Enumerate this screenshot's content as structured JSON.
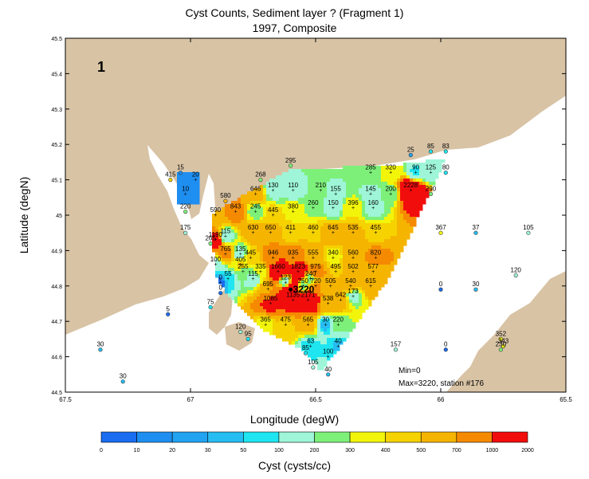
{
  "title": "Cyst Counts, Sediment layer ?  (Fragment 1)",
  "subtitle": "1997, Composite",
  "panel_label": "1",
  "stats": {
    "min": "Min=0",
    "max": "Max=3220, station #176"
  },
  "peak_label": "3220",
  "chart_data": {
    "type": "heatmap",
    "xlabel": "Longitude (degW)",
    "ylabel": "Latitude (degN)",
    "xlim": [
      67.5,
      65.5
    ],
    "ylim": [
      44.5,
      45.5
    ],
    "x_ticks": [
      "67.5",
      "67",
      "66.5",
      "66",
      "65.5"
    ],
    "y_ticks": [
      "44.5",
      "44.6",
      "44.7",
      "44.8",
      "44.9",
      "45",
      "45.1",
      "45.2",
      "45.3",
      "45.4",
      "45.5"
    ],
    "colorbar": {
      "label": "Cyst (cysts/cc)",
      "ticks": [
        "0",
        "10",
        "20",
        "30",
        "50",
        "100",
        "200",
        "300",
        "400",
        "500",
        "700",
        "1000",
        "2000"
      ],
      "colors": [
        "#1a6cf0",
        "#1e8ef0",
        "#21a3f2",
        "#26bdf2",
        "#1ee5f0",
        "#9ef5d8",
        "#7df07a",
        "#f2f50a",
        "#f5d200",
        "#f5b400",
        "#f58a00",
        "#f20d0d"
      ]
    },
    "stations": [
      {
        "lon": 67.04,
        "lat": 45.12,
        "value": "15"
      },
      {
        "lon": 66.98,
        "lat": 45.1,
        "value": "20"
      },
      {
        "lon": 67.08,
        "lat": 45.1,
        "value": "415"
      },
      {
        "lon": 67.02,
        "lat": 45.06,
        "value": "10"
      },
      {
        "lon": 67.02,
        "lat": 45.01,
        "value": "220"
      },
      {
        "lon": 67.02,
        "lat": 44.95,
        "value": "175"
      },
      {
        "lon": 66.86,
        "lat": 45.04,
        "value": "580"
      },
      {
        "lon": 66.9,
        "lat": 45.0,
        "value": "590"
      },
      {
        "lon": 66.9,
        "lat": 44.93,
        "value": "1190"
      },
      {
        "lon": 66.82,
        "lat": 45.01,
        "value": "843"
      },
      {
        "lon": 66.74,
        "lat": 45.06,
        "value": "646"
      },
      {
        "lon": 66.72,
        "lat": 45.1,
        "value": "268"
      },
      {
        "lon": 66.6,
        "lat": 45.14,
        "value": "295"
      },
      {
        "lon": 66.67,
        "lat": 45.07,
        "value": "130"
      },
      {
        "lon": 66.59,
        "lat": 45.07,
        "value": "110"
      },
      {
        "lon": 66.48,
        "lat": 45.07,
        "value": "210"
      },
      {
        "lon": 66.42,
        "lat": 45.06,
        "value": "155"
      },
      {
        "lon": 66.28,
        "lat": 45.12,
        "value": "285"
      },
      {
        "lon": 66.2,
        "lat": 45.12,
        "value": "320"
      },
      {
        "lon": 66.12,
        "lat": 45.17,
        "value": "25"
      },
      {
        "lon": 66.04,
        "lat": 45.18,
        "value": "85"
      },
      {
        "lon": 65.98,
        "lat": 45.18,
        "value": "83"
      },
      {
        "lon": 66.1,
        "lat": 45.12,
        "value": "90"
      },
      {
        "lon": 66.04,
        "lat": 45.12,
        "value": "125"
      },
      {
        "lon": 65.98,
        "lat": 45.12,
        "value": "80"
      },
      {
        "lon": 66.28,
        "lat": 45.06,
        "value": "145"
      },
      {
        "lon": 66.2,
        "lat": 45.06,
        "value": "200"
      },
      {
        "lon": 66.12,
        "lat": 45.07,
        "value": "2228"
      },
      {
        "lon": 66.04,
        "lat": 45.06,
        "value": "290"
      },
      {
        "lon": 66.74,
        "lat": 45.01,
        "value": "245"
      },
      {
        "lon": 66.67,
        "lat": 45.0,
        "value": "445"
      },
      {
        "lon": 66.59,
        "lat": 45.01,
        "value": "380"
      },
      {
        "lon": 66.51,
        "lat": 45.02,
        "value": "260"
      },
      {
        "lon": 66.43,
        "lat": 45.02,
        "value": "150"
      },
      {
        "lon": 66.35,
        "lat": 45.02,
        "value": "396"
      },
      {
        "lon": 66.27,
        "lat": 45.02,
        "value": "160"
      },
      {
        "lon": 66.75,
        "lat": 44.95,
        "value": "630"
      },
      {
        "lon": 66.68,
        "lat": 44.95,
        "value": "650"
      },
      {
        "lon": 66.6,
        "lat": 44.95,
        "value": "411"
      },
      {
        "lon": 66.51,
        "lat": 44.95,
        "value": "460"
      },
      {
        "lon": 66.43,
        "lat": 44.95,
        "value": "645"
      },
      {
        "lon": 66.35,
        "lat": 44.95,
        "value": "535"
      },
      {
        "lon": 66.26,
        "lat": 44.95,
        "value": "455"
      },
      {
        "lon": 66.86,
        "lat": 44.94,
        "value": "115"
      },
      {
        "lon": 66.92,
        "lat": 44.92,
        "value": "265"
      },
      {
        "lon": 66.86,
        "lat": 44.89,
        "value": "765"
      },
      {
        "lon": 66.8,
        "lat": 44.89,
        "value": "135"
      },
      {
        "lon": 66.76,
        "lat": 44.88,
        "value": "445"
      },
      {
        "lon": 66.67,
        "lat": 44.88,
        "value": "946"
      },
      {
        "lon": 66.59,
        "lat": 44.88,
        "value": "935"
      },
      {
        "lon": 66.51,
        "lat": 44.88,
        "value": "555"
      },
      {
        "lon": 66.43,
        "lat": 44.88,
        "value": "340"
      },
      {
        "lon": 66.35,
        "lat": 44.88,
        "value": "560"
      },
      {
        "lon": 66.26,
        "lat": 44.88,
        "value": "820"
      },
      {
        "lon": 66.8,
        "lat": 44.86,
        "value": "405"
      },
      {
        "lon": 66.9,
        "lat": 44.86,
        "value": "100"
      },
      {
        "lon": 66.79,
        "lat": 44.84,
        "value": "255"
      },
      {
        "lon": 66.72,
        "lat": 44.84,
        "value": "335"
      },
      {
        "lon": 66.65,
        "lat": 44.84,
        "value": "1660"
      },
      {
        "lon": 66.57,
        "lat": 44.84,
        "value": "1823"
      },
      {
        "lon": 66.5,
        "lat": 44.84,
        "value": "975"
      },
      {
        "lon": 66.42,
        "lat": 44.84,
        "value": "495"
      },
      {
        "lon": 66.35,
        "lat": 44.84,
        "value": "502"
      },
      {
        "lon": 66.27,
        "lat": 44.84,
        "value": "577"
      },
      {
        "lon": 66.85,
        "lat": 44.82,
        "value": "55"
      },
      {
        "lon": 66.75,
        "lat": 44.82,
        "value": "115"
      },
      {
        "lon": 66.62,
        "lat": 44.81,
        "value": "123"
      },
      {
        "lon": 66.52,
        "lat": 44.82,
        "value": "240"
      },
      {
        "lon": 66.55,
        "lat": 44.8,
        "value": "250"
      },
      {
        "lon": 66.5,
        "lat": 44.8,
        "value": "720"
      },
      {
        "lon": 66.44,
        "lat": 44.8,
        "value": "505"
      },
      {
        "lon": 66.36,
        "lat": 44.8,
        "value": "540"
      },
      {
        "lon": 66.28,
        "lat": 44.8,
        "value": "615"
      },
      {
        "lon": 66.69,
        "lat": 44.79,
        "value": "695"
      },
      {
        "lon": 66.6,
        "lat": 44.79,
        "value": "3220"
      },
      {
        "lon": 66.68,
        "lat": 44.75,
        "value": "1085"
      },
      {
        "lon": 66.59,
        "lat": 44.76,
        "value": "1135"
      },
      {
        "lon": 66.53,
        "lat": 44.76,
        "value": "2171"
      },
      {
        "lon": 66.45,
        "lat": 44.75,
        "value": "538"
      },
      {
        "lon": 66.4,
        "lat": 44.76,
        "value": "642"
      },
      {
        "lon": 66.35,
        "lat": 44.77,
        "value": "173"
      },
      {
        "lon": 66.7,
        "lat": 44.69,
        "value": "365"
      },
      {
        "lon": 66.62,
        "lat": 44.69,
        "value": "475"
      },
      {
        "lon": 66.53,
        "lat": 44.69,
        "value": "565"
      },
      {
        "lon": 66.46,
        "lat": 44.69,
        "value": "30"
      },
      {
        "lon": 66.41,
        "lat": 44.69,
        "value": "220"
      },
      {
        "lon": 66.52,
        "lat": 44.63,
        "value": "63"
      },
      {
        "lon": 66.41,
        "lat": 44.63,
        "value": "40"
      },
      {
        "lon": 66.54,
        "lat": 44.61,
        "value": "85"
      },
      {
        "lon": 66.45,
        "lat": 44.6,
        "value": "100"
      },
      {
        "lon": 66.51,
        "lat": 44.57,
        "value": "105"
      },
      {
        "lon": 66.45,
        "lat": 44.55,
        "value": "40"
      },
      {
        "lon": 66.88,
        "lat": 44.78,
        "value": "0"
      },
      {
        "lon": 66.88,
        "lat": 44.81,
        "value": "0"
      },
      {
        "lon": 66.92,
        "lat": 44.74,
        "value": "75"
      },
      {
        "lon": 67.09,
        "lat": 44.72,
        "value": "5"
      },
      {
        "lon": 66.8,
        "lat": 44.67,
        "value": "120"
      },
      {
        "lon": 66.77,
        "lat": 44.65,
        "value": "95"
      },
      {
        "lon": 67.36,
        "lat": 44.62,
        "value": "30"
      },
      {
        "lon": 67.27,
        "lat": 44.53,
        "value": "30"
      },
      {
        "lon": 66.0,
        "lat": 44.95,
        "value": "367"
      },
      {
        "lon": 65.86,
        "lat": 44.95,
        "value": "37"
      },
      {
        "lon": 65.65,
        "lat": 44.95,
        "value": "105"
      },
      {
        "lon": 65.7,
        "lat": 44.83,
        "value": "120"
      },
      {
        "lon": 66.0,
        "lat": 44.79,
        "value": "0"
      },
      {
        "lon": 65.86,
        "lat": 44.79,
        "value": "30"
      },
      {
        "lon": 66.18,
        "lat": 44.62,
        "value": "157"
      },
      {
        "lon": 65.98,
        "lat": 44.62,
        "value": "0"
      },
      {
        "lon": 65.76,
        "lat": 44.65,
        "value": "352"
      },
      {
        "lon": 65.75,
        "lat": 44.63,
        "value": "343"
      },
      {
        "lon": 65.76,
        "lat": 44.62,
        "value": "230"
      }
    ]
  }
}
